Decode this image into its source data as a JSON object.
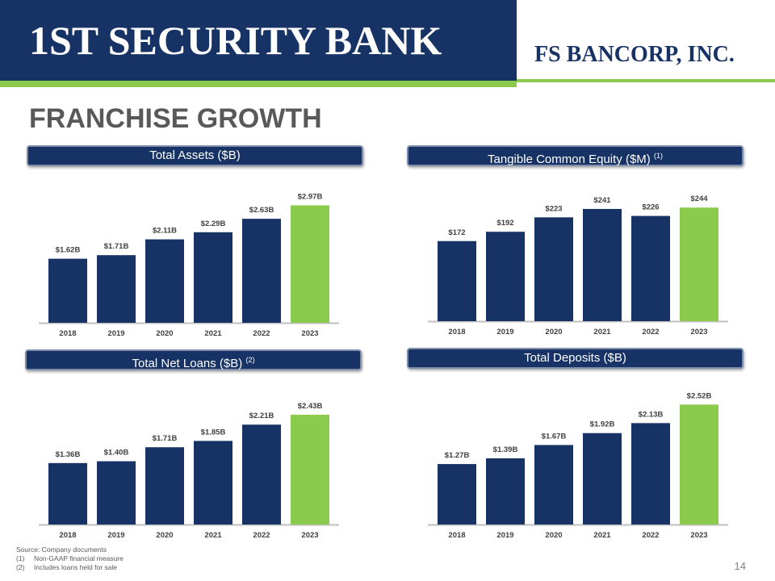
{
  "header": {
    "bank_logo": "1ST SECURITY BANK",
    "bancorp_logo": "FS BANCORP, INC."
  },
  "title": "FRANCHISE GROWTH",
  "colors": {
    "navy": "#173264",
    "green": "#8bcb4b",
    "axis": "#bfbfbf"
  },
  "panels": [
    {
      "title": "Total Assets ($B)",
      "sup": ""
    },
    {
      "title": "Tangible Common Equity ($M)",
      "sup": "(1)"
    },
    {
      "title": "Total Net Loans ($B)",
      "sup": "(2)"
    },
    {
      "title": "Total Deposits ($B)",
      "sup": ""
    }
  ],
  "chart_data": [
    {
      "type": "bar",
      "categories": [
        "2018",
        "2019",
        "2020",
        "2021",
        "2022",
        "2023"
      ],
      "values": [
        1.62,
        1.71,
        2.11,
        2.29,
        2.63,
        2.97
      ],
      "labels": [
        "$1.62B",
        "$1.71B",
        "$2.11B",
        "$2.29B",
        "$2.63B",
        "$2.97B"
      ],
      "highlight_last": true
    },
    {
      "type": "bar",
      "categories": [
        "2018",
        "2019",
        "2020",
        "2021",
        "2022",
        "2023"
      ],
      "values": [
        172,
        192,
        223,
        241,
        226,
        244
      ],
      "labels": [
        "$172",
        "$192",
        "$223",
        "$241",
        "$226",
        "$244"
      ],
      "highlight_last": true
    },
    {
      "type": "bar",
      "categories": [
        "2018",
        "2019",
        "2020",
        "2021",
        "2022",
        "2023"
      ],
      "values": [
        1.36,
        1.4,
        1.71,
        1.85,
        2.21,
        2.43
      ],
      "labels": [
        "$1.36B",
        "$1.40B",
        "$1.71B",
        "$1.85B",
        "$2.21B",
        "$2.43B"
      ],
      "highlight_last": true
    },
    {
      "type": "bar",
      "categories": [
        "2018",
        "2019",
        "2020",
        "2021",
        "2022",
        "2023"
      ],
      "values": [
        1.27,
        1.39,
        1.67,
        1.92,
        2.13,
        2.52
      ],
      "labels": [
        "$1.27B",
        "$1.39B",
        "$1.67B",
        "$1.92B",
        "$2.13B",
        "$2.52B"
      ],
      "highlight_last": true
    }
  ],
  "footnotes": {
    "source": "Source: Company documents",
    "note1_num": "(1)",
    "note1": "Non-GAAP financial measure",
    "note2_num": "(2)",
    "note2": "Includes loans held for sale"
  },
  "page_number": "14"
}
